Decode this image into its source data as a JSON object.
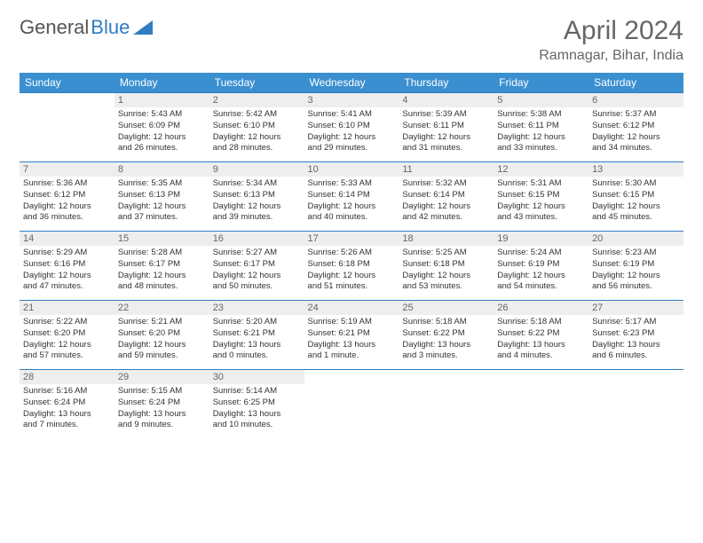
{
  "logo": {
    "text1": "General",
    "text2": "Blue"
  },
  "title": "April 2024",
  "location": "Ramnagar, Bihar, India",
  "colors": {
    "header_bg": "#3a8fd0",
    "header_fg": "#ffffff",
    "border": "#2f7cc0",
    "daynum_bg": "#eeeeee",
    "text": "#333333",
    "muted": "#666666"
  },
  "day_headers": [
    "Sunday",
    "Monday",
    "Tuesday",
    "Wednesday",
    "Thursday",
    "Friday",
    "Saturday"
  ],
  "weeks": [
    [
      null,
      {
        "n": "1",
        "sr": "Sunrise: 5:43 AM",
        "ss": "Sunset: 6:09 PM",
        "d1": "Daylight: 12 hours",
        "d2": "and 26 minutes."
      },
      {
        "n": "2",
        "sr": "Sunrise: 5:42 AM",
        "ss": "Sunset: 6:10 PM",
        "d1": "Daylight: 12 hours",
        "d2": "and 28 minutes."
      },
      {
        "n": "3",
        "sr": "Sunrise: 5:41 AM",
        "ss": "Sunset: 6:10 PM",
        "d1": "Daylight: 12 hours",
        "d2": "and 29 minutes."
      },
      {
        "n": "4",
        "sr": "Sunrise: 5:39 AM",
        "ss": "Sunset: 6:11 PM",
        "d1": "Daylight: 12 hours",
        "d2": "and 31 minutes."
      },
      {
        "n": "5",
        "sr": "Sunrise: 5:38 AM",
        "ss": "Sunset: 6:11 PM",
        "d1": "Daylight: 12 hours",
        "d2": "and 33 minutes."
      },
      {
        "n": "6",
        "sr": "Sunrise: 5:37 AM",
        "ss": "Sunset: 6:12 PM",
        "d1": "Daylight: 12 hours",
        "d2": "and 34 minutes."
      }
    ],
    [
      {
        "n": "7",
        "sr": "Sunrise: 5:36 AM",
        "ss": "Sunset: 6:12 PM",
        "d1": "Daylight: 12 hours",
        "d2": "and 36 minutes."
      },
      {
        "n": "8",
        "sr": "Sunrise: 5:35 AM",
        "ss": "Sunset: 6:13 PM",
        "d1": "Daylight: 12 hours",
        "d2": "and 37 minutes."
      },
      {
        "n": "9",
        "sr": "Sunrise: 5:34 AM",
        "ss": "Sunset: 6:13 PM",
        "d1": "Daylight: 12 hours",
        "d2": "and 39 minutes."
      },
      {
        "n": "10",
        "sr": "Sunrise: 5:33 AM",
        "ss": "Sunset: 6:14 PM",
        "d1": "Daylight: 12 hours",
        "d2": "and 40 minutes."
      },
      {
        "n": "11",
        "sr": "Sunrise: 5:32 AM",
        "ss": "Sunset: 6:14 PM",
        "d1": "Daylight: 12 hours",
        "d2": "and 42 minutes."
      },
      {
        "n": "12",
        "sr": "Sunrise: 5:31 AM",
        "ss": "Sunset: 6:15 PM",
        "d1": "Daylight: 12 hours",
        "d2": "and 43 minutes."
      },
      {
        "n": "13",
        "sr": "Sunrise: 5:30 AM",
        "ss": "Sunset: 6:15 PM",
        "d1": "Daylight: 12 hours",
        "d2": "and 45 minutes."
      }
    ],
    [
      {
        "n": "14",
        "sr": "Sunrise: 5:29 AM",
        "ss": "Sunset: 6:16 PM",
        "d1": "Daylight: 12 hours",
        "d2": "and 47 minutes."
      },
      {
        "n": "15",
        "sr": "Sunrise: 5:28 AM",
        "ss": "Sunset: 6:17 PM",
        "d1": "Daylight: 12 hours",
        "d2": "and 48 minutes."
      },
      {
        "n": "16",
        "sr": "Sunrise: 5:27 AM",
        "ss": "Sunset: 6:17 PM",
        "d1": "Daylight: 12 hours",
        "d2": "and 50 minutes."
      },
      {
        "n": "17",
        "sr": "Sunrise: 5:26 AM",
        "ss": "Sunset: 6:18 PM",
        "d1": "Daylight: 12 hours",
        "d2": "and 51 minutes."
      },
      {
        "n": "18",
        "sr": "Sunrise: 5:25 AM",
        "ss": "Sunset: 6:18 PM",
        "d1": "Daylight: 12 hours",
        "d2": "and 53 minutes."
      },
      {
        "n": "19",
        "sr": "Sunrise: 5:24 AM",
        "ss": "Sunset: 6:19 PM",
        "d1": "Daylight: 12 hours",
        "d2": "and 54 minutes."
      },
      {
        "n": "20",
        "sr": "Sunrise: 5:23 AM",
        "ss": "Sunset: 6:19 PM",
        "d1": "Daylight: 12 hours",
        "d2": "and 56 minutes."
      }
    ],
    [
      {
        "n": "21",
        "sr": "Sunrise: 5:22 AM",
        "ss": "Sunset: 6:20 PM",
        "d1": "Daylight: 12 hours",
        "d2": "and 57 minutes."
      },
      {
        "n": "22",
        "sr": "Sunrise: 5:21 AM",
        "ss": "Sunset: 6:20 PM",
        "d1": "Daylight: 12 hours",
        "d2": "and 59 minutes."
      },
      {
        "n": "23",
        "sr": "Sunrise: 5:20 AM",
        "ss": "Sunset: 6:21 PM",
        "d1": "Daylight: 13 hours",
        "d2": "and 0 minutes."
      },
      {
        "n": "24",
        "sr": "Sunrise: 5:19 AM",
        "ss": "Sunset: 6:21 PM",
        "d1": "Daylight: 13 hours",
        "d2": "and 1 minute."
      },
      {
        "n": "25",
        "sr": "Sunrise: 5:18 AM",
        "ss": "Sunset: 6:22 PM",
        "d1": "Daylight: 13 hours",
        "d2": "and 3 minutes."
      },
      {
        "n": "26",
        "sr": "Sunrise: 5:18 AM",
        "ss": "Sunset: 6:22 PM",
        "d1": "Daylight: 13 hours",
        "d2": "and 4 minutes."
      },
      {
        "n": "27",
        "sr": "Sunrise: 5:17 AM",
        "ss": "Sunset: 6:23 PM",
        "d1": "Daylight: 13 hours",
        "d2": "and 6 minutes."
      }
    ],
    [
      {
        "n": "28",
        "sr": "Sunrise: 5:16 AM",
        "ss": "Sunset: 6:24 PM",
        "d1": "Daylight: 13 hours",
        "d2": "and 7 minutes."
      },
      {
        "n": "29",
        "sr": "Sunrise: 5:15 AM",
        "ss": "Sunset: 6:24 PM",
        "d1": "Daylight: 13 hours",
        "d2": "and 9 minutes."
      },
      {
        "n": "30",
        "sr": "Sunrise: 5:14 AM",
        "ss": "Sunset: 6:25 PM",
        "d1": "Daylight: 13 hours",
        "d2": "and 10 minutes."
      },
      null,
      null,
      null,
      null
    ]
  ]
}
